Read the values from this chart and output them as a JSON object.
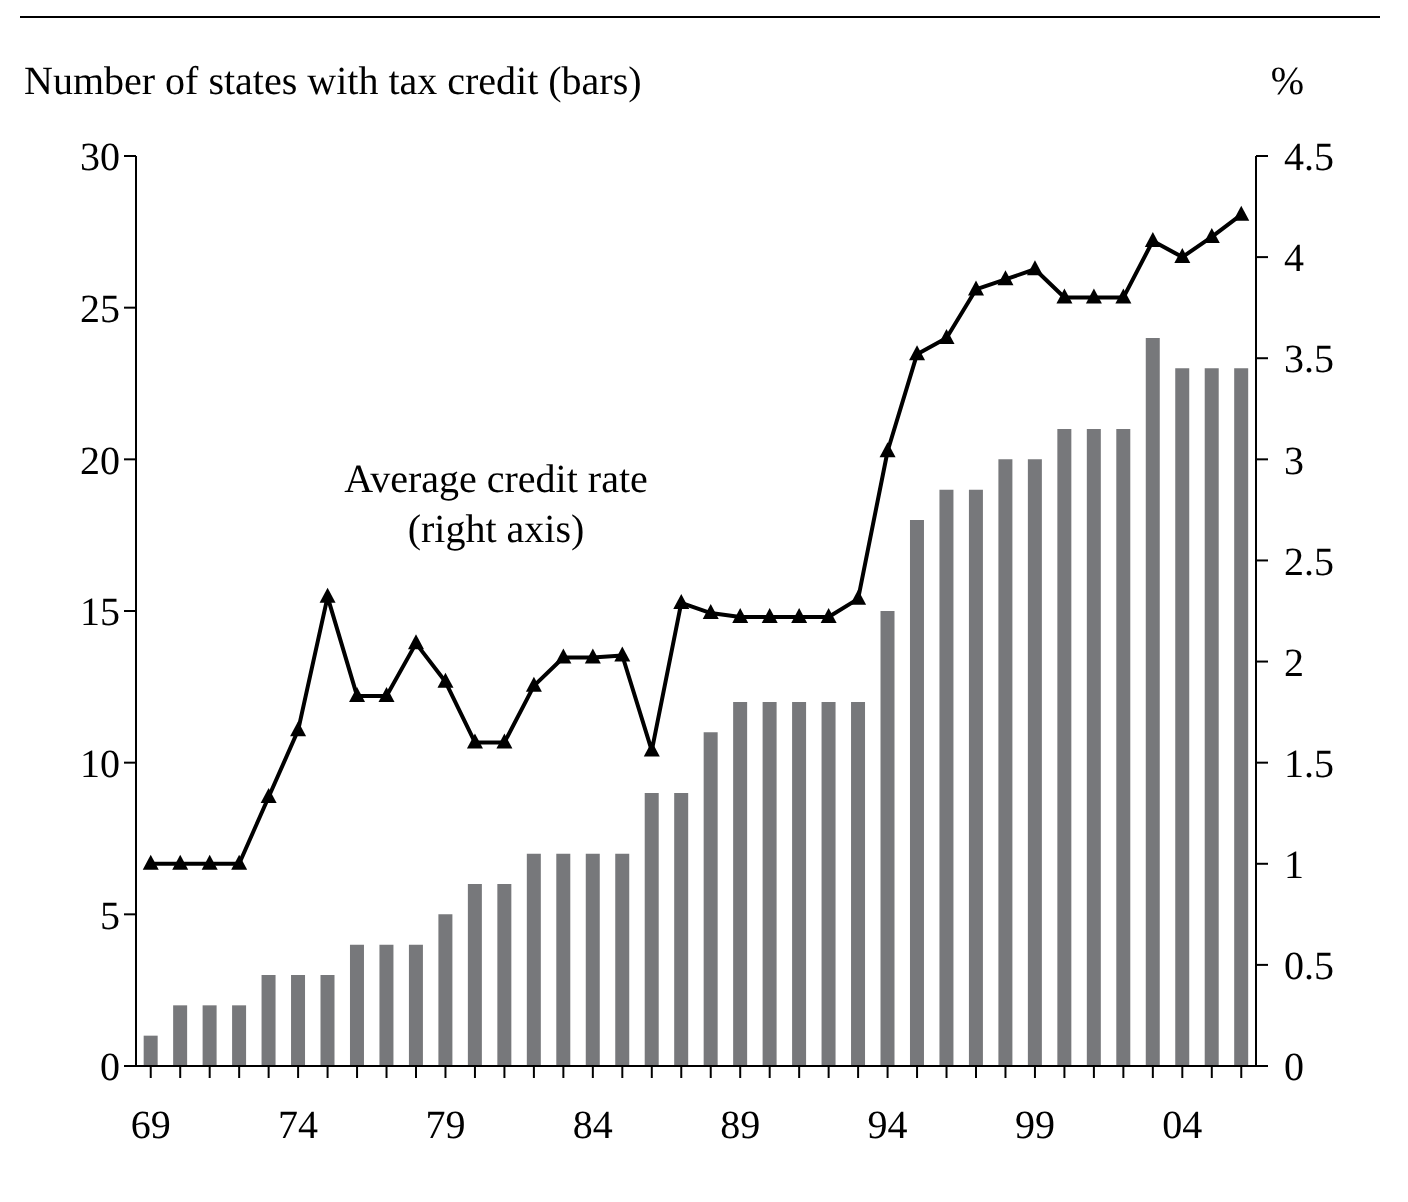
{
  "chart_data": {
    "type": "bar",
    "ylabel": "Number of states with tax credit (bars)",
    "y2label": "%",
    "annotations": [
      "Average credit rate\n(right axis)"
    ],
    "categories": [
      "69",
      null,
      null,
      null,
      null,
      "74",
      null,
      null,
      null,
      null,
      "79",
      null,
      null,
      null,
      null,
      "84",
      null,
      null,
      null,
      null,
      "89",
      null,
      null,
      null,
      null,
      "94",
      null,
      null,
      null,
      null,
      "99",
      null,
      null,
      null,
      null,
      "04",
      null,
      null
    ],
    "series": [
      {
        "color": "#77787b",
        "values": [
          1,
          2,
          2,
          2,
          3,
          3,
          3,
          4,
          4,
          4,
          5,
          6,
          6,
          7,
          7,
          7,
          7,
          9,
          9,
          11,
          12,
          12,
          12,
          12,
          12,
          15,
          18,
          19,
          19,
          20,
          20,
          21,
          21,
          21,
          24,
          23,
          23,
          23
        ]
      },
      {
        "type": "line",
        "axis": "y2",
        "color": "#000000",
        "marker": "triangle",
        "values": [
          1.0,
          1.0,
          1.0,
          1.0,
          1.33,
          1.66,
          2.32,
          1.83,
          1.83,
          2.09,
          1.9,
          1.6,
          1.6,
          1.88,
          2.02,
          2.02,
          2.03,
          1.56,
          2.29,
          2.24,
          2.22,
          2.22,
          2.22,
          2.22,
          2.31,
          3.04,
          3.52,
          3.6,
          3.84,
          3.89,
          3.94,
          3.8,
          3.8,
          3.8,
          4.08,
          4.0,
          4.1,
          4.21
        ]
      }
    ],
    "ylim": [
      0,
      30
    ],
    "yticks": [
      0,
      5,
      10,
      15,
      20,
      25,
      30
    ],
    "y2lim": [
      0,
      4.5
    ],
    "y2ticks": [
      0,
      0.5,
      1,
      1.5,
      2,
      2.5,
      3,
      3.5,
      4,
      4.5
    ],
    "grid": false,
    "legend": false
  }
}
